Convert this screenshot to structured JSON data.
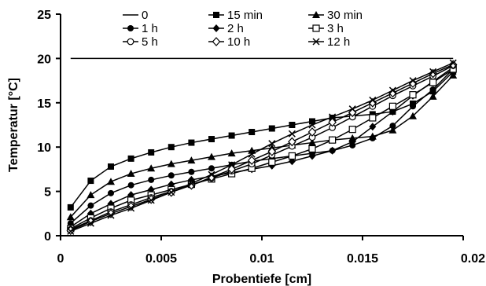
{
  "chart_data": {
    "type": "line",
    "title": "",
    "xlabel": "Probentiefe [cm]",
    "ylabel": "Temperatur [°C]",
    "xlim": [
      0,
      0.02
    ],
    "ylim": [
      0,
      25
    ],
    "xticks": [
      0,
      0.005,
      0.01,
      0.015,
      0.02
    ],
    "xtick_labels": [
      "0",
      "0.005",
      "0.01",
      "0.015",
      "0.02"
    ],
    "yticks": [
      0,
      5,
      10,
      15,
      20,
      25
    ],
    "ytick_labels": [
      "0",
      "5",
      "10",
      "15",
      "20",
      "25"
    ],
    "grid": false,
    "legend_position": "top",
    "x": [
      0.0005,
      0.0015,
      0.0025,
      0.0035,
      0.0045,
      0.0055,
      0.0065,
      0.0075,
      0.0085,
      0.0095,
      0.0105,
      0.0115,
      0.0125,
      0.0135,
      0.0145,
      0.0155,
      0.0165,
      0.0175,
      0.0185,
      0.0195
    ],
    "series": [
      {
        "name": "0",
        "marker": "none",
        "x": [
          0.0005,
          0.0195
        ],
        "values": [
          20,
          20
        ]
      },
      {
        "name": "15 min",
        "marker": "filled-square",
        "values": [
          3.2,
          6.2,
          7.8,
          8.7,
          9.4,
          10.0,
          10.5,
          10.9,
          11.3,
          11.7,
          12.1,
          12.5,
          12.9,
          13.3,
          13.5,
          13.7,
          14.0,
          14.9,
          16.3,
          18.5
        ]
      },
      {
        "name": "30 min",
        "marker": "filled-triangle",
        "values": [
          2.1,
          4.6,
          6.1,
          7.0,
          7.6,
          8.1,
          8.5,
          8.9,
          9.3,
          9.6,
          9.9,
          10.2,
          10.5,
          10.8,
          11.0,
          11.2,
          11.9,
          13.5,
          15.7,
          18.1
        ]
      },
      {
        "name": "1 h",
        "marker": "filled-circle",
        "values": [
          1.4,
          3.4,
          4.8,
          5.7,
          6.3,
          6.8,
          7.2,
          7.6,
          8.0,
          8.4,
          8.7,
          9.0,
          9.3,
          9.6,
          10.2,
          11.0,
          12.4,
          14.6,
          16.5,
          18.8
        ]
      },
      {
        "name": "2 h",
        "marker": "filled-diamond",
        "values": [
          1.0,
          2.5,
          3.6,
          4.6,
          5.2,
          5.8,
          6.3,
          6.7,
          7.1,
          7.5,
          7.9,
          8.4,
          9.0,
          9.6,
          10.6,
          12.3,
          14.0,
          15.8,
          17.4,
          19.0
        ]
      },
      {
        "name": "3 h",
        "marker": "open-square",
        "values": [
          0.8,
          2.0,
          3.1,
          4.0,
          4.6,
          5.2,
          5.8,
          6.4,
          7.0,
          7.6,
          8.3,
          9.0,
          9.8,
          10.8,
          12.0,
          13.3,
          14.6,
          15.9,
          17.3,
          18.8
        ]
      },
      {
        "name": "5 h",
        "marker": "open-circle",
        "values": [
          0.7,
          1.7,
          2.7,
          3.5,
          4.3,
          5.0,
          5.7,
          6.5,
          7.3,
          8.1,
          9.1,
          10.1,
          11.1,
          12.2,
          13.4,
          14.6,
          15.8,
          16.9,
          18.0,
          19.2
        ]
      },
      {
        "name": "10 h",
        "marker": "open-diamond",
        "values": [
          0.6,
          1.6,
          2.5,
          3.3,
          4.1,
          4.9,
          5.7,
          6.6,
          7.5,
          8.5,
          9.5,
          10.6,
          11.7,
          12.8,
          13.9,
          15.0,
          16.1,
          17.2,
          18.3,
          19.3
        ]
      },
      {
        "name": "12 h",
        "marker": "x",
        "values": [
          0.5,
          1.4,
          2.3,
          3.1,
          4.0,
          4.9,
          5.9,
          6.9,
          8.0,
          9.2,
          10.4,
          11.5,
          12.5,
          13.4,
          14.3,
          15.3,
          16.4,
          17.5,
          18.5,
          19.5
        ]
      }
    ]
  }
}
